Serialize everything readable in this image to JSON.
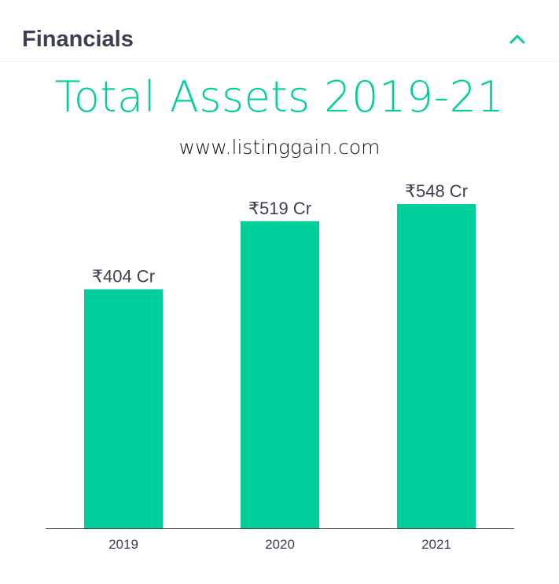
{
  "header": {
    "title": "Financials",
    "collapse_icon": "chevron-up-icon"
  },
  "colors": {
    "accent": "#00cf9b",
    "text": "#3a3f51"
  },
  "chart_data": {
    "type": "bar",
    "title": "Total Assets 2019-21",
    "subtitle": "www.listinggain.com",
    "categories": [
      "2019",
      "2020",
      "2021"
    ],
    "values": [
      404,
      519,
      548
    ],
    "data_labels": [
      "₹404 Cr",
      "₹519 Cr",
      "₹548 Cr"
    ],
    "xlabel": "",
    "ylabel": "",
    "ylim": [
      0,
      548
    ],
    "grid": false,
    "legend": "none"
  }
}
